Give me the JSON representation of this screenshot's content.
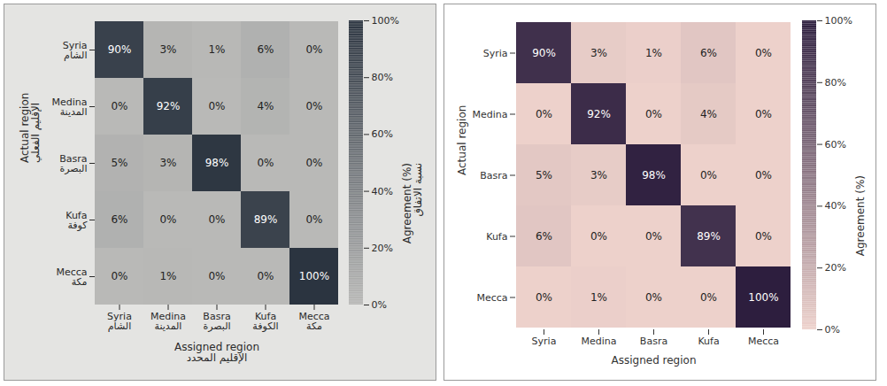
{
  "chart_data": [
    {
      "type": "heatmap",
      "x_label": "Assigned region",
      "y_label": "Actual region",
      "x_label_ar": "الإقليم المحدد",
      "y_label_ar": "الإقليم الفعلي",
      "x_categories": [
        "Syria",
        "Medina",
        "Basra",
        "Kufa",
        "Mecca"
      ],
      "y_categories": [
        "Syria",
        "Medina",
        "Basra",
        "Kufa",
        "Mecca"
      ],
      "x_categories_ar": [
        "الشام",
        "المدينة",
        "البصرة",
        "الكوفة",
        "مكة"
      ],
      "y_categories_ar": [
        "الشام",
        "المدينة",
        "البصرة",
        "كوفة",
        "مكة"
      ],
      "cells": [
        [
          90,
          3,
          1,
          6,
          0
        ],
        [
          0,
          92,
          0,
          4,
          0
        ],
        [
          5,
          3,
          98,
          0,
          0
        ],
        [
          6,
          0,
          0,
          89,
          0
        ],
        [
          0,
          1,
          0,
          0,
          100
        ]
      ],
      "value_labels": [
        [
          "90%",
          "3%",
          "1%",
          "6%",
          "0%"
        ],
        [
          "0%",
          "92%",
          "0%",
          "4%",
          "0%"
        ],
        [
          "5%",
          "3%",
          "98%",
          "0%",
          "0%"
        ],
        [
          "6%",
          "0%",
          "0%",
          "89%",
          "0%"
        ],
        [
          "0%",
          "1%",
          "0%",
          "0%",
          "100%"
        ]
      ],
      "data_labels": true,
      "color": "#2b3440",
      "colorbar": {
        "label": "Agreement (%)",
        "label_ar": "نسبة الاتفاق",
        "range": [
          0,
          100
        ],
        "ticks": [
          {
            "value": 0,
            "label": "0%"
          },
          {
            "value": 20,
            "label": "20%"
          },
          {
            "value": 40,
            "label": "40%"
          },
          {
            "value": 60,
            "label": "60%"
          },
          {
            "value": 80,
            "label": "80%"
          },
          {
            "value": 100,
            "label": "100%"
          }
        ]
      }
    },
    {
      "type": "heatmap",
      "x_label": "Assigned region",
      "y_label": "Actual region",
      "x_categories": [
        "Syria",
        "Medina",
        "Basra",
        "Kufa",
        "Mecca"
      ],
      "y_categories": [
        "Syria",
        "Medina",
        "Basra",
        "Kufa",
        "Mecca"
      ],
      "cells": [
        [
          90,
          3,
          1,
          6,
          0
        ],
        [
          0,
          92,
          0,
          4,
          0
        ],
        [
          5,
          3,
          98,
          0,
          0
        ],
        [
          6,
          0,
          0,
          89,
          0
        ],
        [
          0,
          1,
          0,
          0,
          100
        ]
      ],
      "value_labels": [
        [
          "90%",
          "3%",
          "1%",
          "6%",
          "0%"
        ],
        [
          "0%",
          "92%",
          "0%",
          "4%",
          "0%"
        ],
        [
          "5%",
          "3%",
          "98%",
          "0%",
          "0%"
        ],
        [
          "6%",
          "0%",
          "0%",
          "89%",
          "0%"
        ],
        [
          "0%",
          "1%",
          "0%",
          "0%",
          "100%"
        ]
      ],
      "data_labels": true,
      "color": "#2d1e3e",
      "colorbar": {
        "label": "Agreement (%)",
        "range": [
          0,
          100
        ],
        "ticks": [
          {
            "value": 0,
            "label": "0%"
          },
          {
            "value": 20,
            "label": "20%"
          },
          {
            "value": 40,
            "label": "40%"
          },
          {
            "value": 60,
            "label": "60%"
          },
          {
            "value": 80,
            "label": "80%"
          },
          {
            "value": 100,
            "label": "100%"
          }
        ]
      }
    }
  ]
}
